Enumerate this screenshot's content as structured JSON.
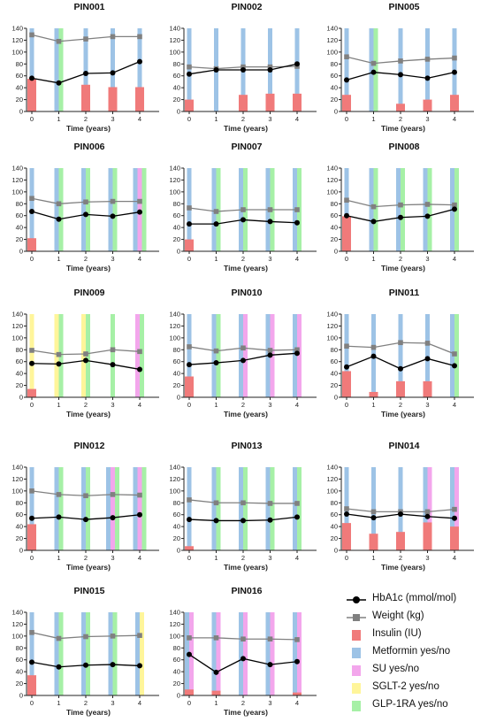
{
  "legend": [
    {
      "key": "hba1c",
      "label": "HbA1c (mmol/mol)",
      "color": "#000000",
      "kind": "line-circle"
    },
    {
      "key": "weight",
      "label": "Weight (kg)",
      "color": "#808080",
      "kind": "line-square"
    },
    {
      "key": "insulin",
      "label": "Insulin (IU)",
      "color": "#f07a7a",
      "kind": "box"
    },
    {
      "key": "metformin",
      "label": "Metformin yes/no",
      "color": "#9dc3e6",
      "kind": "box"
    },
    {
      "key": "su",
      "label": "SU yes/no",
      "color": "#f3a6ec",
      "kind": "box"
    },
    {
      "key": "sglt2",
      "label": "SGLT-2 yes/no",
      "color": "#fff59a",
      "kind": "box"
    },
    {
      "key": "glp1ra",
      "label": "GLP-1RA yes/no",
      "color": "#a6f0a6",
      "kind": "box"
    }
  ],
  "chart_data": [
    {
      "type": "bar",
      "title": "PIN001",
      "xlabel": "Time (years)",
      "x": [
        0,
        1,
        2,
        3,
        4
      ],
      "ylim": [
        0,
        140
      ],
      "yticks": [
        0,
        20,
        40,
        60,
        80,
        100,
        120,
        140
      ],
      "hba1c": [
        56,
        48,
        64,
        65,
        84
      ],
      "weight": [
        129,
        118,
        122,
        126,
        126
      ],
      "insulin": [
        55,
        null,
        45,
        41,
        41
      ],
      "medication": {
        "metformin": [
          1,
          1,
          1,
          1,
          1
        ],
        "su": [
          0,
          0,
          0,
          0,
          0
        ],
        "sglt2": [
          0,
          0,
          0,
          0,
          0
        ],
        "glp1ra": [
          0,
          1,
          0,
          0,
          0
        ]
      }
    },
    {
      "type": "bar",
      "title": "PIN002",
      "xlabel": "Time (years)",
      "x": [
        0,
        1,
        2,
        3,
        4
      ],
      "ylim": [
        0,
        140
      ],
      "yticks": [
        0,
        20,
        40,
        60,
        80,
        100,
        120,
        140
      ],
      "hba1c": [
        63,
        70,
        70,
        70,
        80
      ],
      "weight": [
        75,
        72,
        75,
        75,
        76
      ],
      "insulin": [
        20,
        null,
        28,
        30,
        30
      ],
      "medication": {
        "metformin": [
          1,
          1,
          1,
          1,
          1
        ],
        "su": [
          0,
          0,
          0,
          0,
          0
        ],
        "sglt2": [
          0,
          0,
          0,
          0,
          0
        ],
        "glp1ra": [
          0,
          0,
          0,
          0,
          0
        ]
      }
    },
    {
      "type": "bar",
      "title": "PIN005",
      "xlabel": "Time (years)",
      "x": [
        0,
        1,
        2,
        3,
        4
      ],
      "ylim": [
        0,
        140
      ],
      "yticks": [
        0,
        20,
        40,
        60,
        80,
        100,
        120,
        140
      ],
      "hba1c": [
        53,
        66,
        62,
        56,
        66
      ],
      "weight": [
        92,
        81,
        85,
        88,
        90
      ],
      "insulin": [
        28,
        null,
        13,
        20,
        28
      ],
      "medication": {
        "metformin": [
          1,
          1,
          1,
          1,
          1
        ],
        "su": [
          0,
          0,
          0,
          0,
          0
        ],
        "sglt2": [
          0,
          0,
          0,
          0,
          0
        ],
        "glp1ra": [
          0,
          1,
          0,
          0,
          0
        ]
      }
    },
    {
      "type": "bar",
      "title": "PIN006",
      "xlabel": "Time (years)",
      "x": [
        0,
        1,
        2,
        3,
        4
      ],
      "ylim": [
        0,
        140
      ],
      "yticks": [
        0,
        20,
        40,
        60,
        80,
        100,
        120,
        140
      ],
      "hba1c": [
        67,
        54,
        62,
        59,
        66
      ],
      "weight": [
        89,
        80,
        83,
        84,
        84
      ],
      "insulin": [
        22,
        null,
        null,
        null,
        null
      ],
      "medication": {
        "metformin": [
          1,
          1,
          1,
          1,
          1
        ],
        "su": [
          0,
          0,
          0,
          0,
          1
        ],
        "sglt2": [
          0,
          0,
          0,
          0,
          0
        ],
        "glp1ra": [
          0,
          1,
          1,
          1,
          1
        ]
      }
    },
    {
      "type": "bar",
      "title": "PIN007",
      "xlabel": "Time (years)",
      "x": [
        0,
        1,
        2,
        3,
        4
      ],
      "ylim": [
        0,
        140
      ],
      "yticks": [
        0,
        20,
        40,
        60,
        80,
        100,
        120,
        140
      ],
      "hba1c": [
        46,
        46,
        53,
        50,
        48
      ],
      "weight": [
        73,
        67,
        70,
        70,
        70
      ],
      "insulin": [
        20,
        null,
        null,
        null,
        null
      ],
      "medication": {
        "metformin": [
          1,
          1,
          1,
          1,
          1
        ],
        "su": [
          0,
          0,
          0,
          0,
          0
        ],
        "sglt2": [
          0,
          0,
          0,
          0,
          0
        ],
        "glp1ra": [
          0,
          1,
          1,
          1,
          1
        ]
      }
    },
    {
      "type": "bar",
      "title": "PIN008",
      "xlabel": "Time (years)",
      "x": [
        0,
        1,
        2,
        3,
        4
      ],
      "ylim": [
        0,
        140
      ],
      "yticks": [
        0,
        20,
        40,
        60,
        80,
        100,
        120,
        140
      ],
      "hba1c": [
        60,
        50,
        57,
        59,
        71
      ],
      "weight": [
        86,
        75,
        78,
        79,
        78
      ],
      "insulin": [
        59,
        null,
        null,
        null,
        null
      ],
      "medication": {
        "metformin": [
          1,
          1,
          1,
          1,
          1
        ],
        "su": [
          0,
          0,
          0,
          0,
          0
        ],
        "sglt2": [
          0,
          0,
          0,
          0,
          0
        ],
        "glp1ra": [
          0,
          1,
          1,
          1,
          1
        ]
      }
    },
    {
      "type": "bar",
      "title": "PIN009",
      "xlabel": "Time (years)",
      "x": [
        0,
        1,
        2,
        3,
        4
      ],
      "ylim": [
        0,
        140
      ],
      "yticks": [
        0,
        20,
        40,
        60,
        80,
        100,
        120,
        140
      ],
      "hba1c": [
        57,
        56,
        62,
        55,
        47
      ],
      "weight": [
        79,
        72,
        73,
        80,
        77
      ],
      "insulin": [
        14,
        null,
        null,
        null,
        null
      ],
      "medication": {
        "metformin": [
          0,
          0,
          0,
          0,
          0
        ],
        "su": [
          0,
          0,
          0,
          0,
          1
        ],
        "sglt2": [
          1,
          1,
          1,
          0,
          0
        ],
        "glp1ra": [
          0,
          1,
          1,
          1,
          1
        ]
      }
    },
    {
      "type": "bar",
      "title": "PIN010",
      "xlabel": "Time (years)",
      "x": [
        0,
        1,
        2,
        3,
        4
      ],
      "ylim": [
        0,
        140
      ],
      "yticks": [
        0,
        20,
        40,
        60,
        80,
        100,
        120,
        140
      ],
      "hba1c": [
        55,
        58,
        62,
        71,
        74
      ],
      "weight": [
        85,
        78,
        83,
        79,
        80
      ],
      "insulin": [
        35,
        null,
        null,
        null,
        null
      ],
      "medication": {
        "metformin": [
          1,
          1,
          1,
          1,
          1
        ],
        "su": [
          0,
          0,
          1,
          1,
          1
        ],
        "sglt2": [
          0,
          0,
          0,
          0,
          0
        ],
        "glp1ra": [
          0,
          1,
          0,
          0,
          0
        ]
      }
    },
    {
      "type": "bar",
      "title": "PIN011",
      "xlabel": "Time (years)",
      "x": [
        0,
        1,
        2,
        3,
        4
      ],
      "ylim": [
        0,
        140
      ],
      "yticks": [
        0,
        20,
        40,
        60,
        80,
        100,
        120,
        140
      ],
      "hba1c": [
        51,
        69,
        48,
        65,
        53
      ],
      "weight": [
        86,
        84,
        92,
        91,
        73
      ],
      "insulin": [
        44,
        9,
        27,
        27,
        null
      ],
      "medication": {
        "metformin": [
          1,
          1,
          1,
          1,
          1
        ],
        "su": [
          0,
          0,
          0,
          0,
          0
        ],
        "sglt2": [
          0,
          0,
          0,
          0,
          0
        ],
        "glp1ra": [
          0,
          0,
          0,
          0,
          1
        ]
      }
    },
    {
      "type": "bar",
      "title": "PIN012",
      "xlabel": "Time (years)",
      "x": [
        0,
        1,
        2,
        3,
        4
      ],
      "ylim": [
        0,
        140
      ],
      "yticks": [
        0,
        20,
        40,
        60,
        80,
        100,
        120,
        140
      ],
      "hba1c": [
        54,
        56,
        52,
        55,
        60
      ],
      "weight": [
        100,
        94,
        92,
        94,
        93
      ],
      "insulin": [
        44,
        null,
        null,
        null,
        null
      ],
      "medication": {
        "metformin": [
          1,
          1,
          1,
          1,
          1
        ],
        "su": [
          0,
          0,
          0,
          1,
          1
        ],
        "sglt2": [
          0,
          0,
          0,
          0,
          0
        ],
        "glp1ra": [
          0,
          1,
          1,
          1,
          1
        ]
      }
    },
    {
      "type": "bar",
      "title": "PIN013",
      "xlabel": "Time (years)",
      "x": [
        0,
        1,
        2,
        3,
        4
      ],
      "ylim": [
        0,
        140
      ],
      "yticks": [
        0,
        20,
        40,
        60,
        80,
        100,
        120,
        140
      ],
      "hba1c": [
        52,
        50,
        50,
        51,
        56
      ],
      "weight": [
        85,
        80,
        80,
        79,
        79
      ],
      "insulin": [
        7,
        null,
        null,
        null,
        null
      ],
      "medication": {
        "metformin": [
          1,
          1,
          1,
          1,
          1
        ],
        "su": [
          0,
          0,
          0,
          0,
          0
        ],
        "sglt2": [
          0,
          0,
          0,
          0,
          0
        ],
        "glp1ra": [
          0,
          1,
          1,
          1,
          1
        ]
      }
    },
    {
      "type": "bar",
      "title": "PIN014",
      "xlabel": "Time (years)",
      "x": [
        0,
        1,
        2,
        3,
        4
      ],
      "ylim": [
        0,
        140
      ],
      "yticks": [
        0,
        20,
        40,
        60,
        80,
        100,
        120,
        140
      ],
      "hba1c": [
        61,
        55,
        61,
        57,
        54
      ],
      "weight": [
        70,
        65,
        65,
        65,
        69
      ],
      "insulin": [
        46,
        28,
        31,
        47,
        40
      ],
      "medication": {
        "metformin": [
          1,
          1,
          1,
          1,
          1
        ],
        "su": [
          0,
          0,
          0,
          1,
          1
        ],
        "sglt2": [
          0,
          0,
          0,
          0,
          0
        ],
        "glp1ra": [
          0,
          0,
          0,
          0,
          0
        ]
      }
    },
    {
      "type": "bar",
      "title": "PIN015",
      "xlabel": "Time (years)",
      "x": [
        0,
        1,
        2,
        3,
        4
      ],
      "ylim": [
        0,
        140
      ],
      "yticks": [
        0,
        20,
        40,
        60,
        80,
        100,
        120,
        140
      ],
      "hba1c": [
        56,
        48,
        51,
        52,
        50
      ],
      "weight": [
        106,
        96,
        99,
        100,
        101
      ],
      "insulin": [
        34,
        null,
        null,
        null,
        null
      ],
      "medication": {
        "metformin": [
          1,
          1,
          1,
          1,
          1
        ],
        "su": [
          0,
          0,
          0,
          0,
          0
        ],
        "sglt2": [
          0,
          0,
          0,
          0,
          1
        ],
        "glp1ra": [
          0,
          1,
          1,
          1,
          0
        ]
      }
    },
    {
      "type": "bar",
      "title": "PIN016",
      "xlabel": "Time (years)",
      "x": [
        0,
        1,
        2,
        3,
        4
      ],
      "ylim": [
        0,
        140
      ],
      "yticks": [
        0,
        20,
        40,
        60,
        80,
        100,
        120,
        140
      ],
      "hba1c": [
        69,
        39,
        62,
        52,
        57
      ],
      "weight": [
        97,
        97,
        95,
        95,
        94
      ],
      "insulin": [
        10,
        8,
        null,
        null,
        5
      ],
      "medication": {
        "metformin": [
          1,
          1,
          1,
          1,
          1
        ],
        "su": [
          1,
          1,
          1,
          1,
          1
        ],
        "sglt2": [
          0,
          0,
          0,
          0,
          0
        ],
        "glp1ra": [
          0,
          0,
          0,
          0,
          0
        ]
      }
    }
  ]
}
